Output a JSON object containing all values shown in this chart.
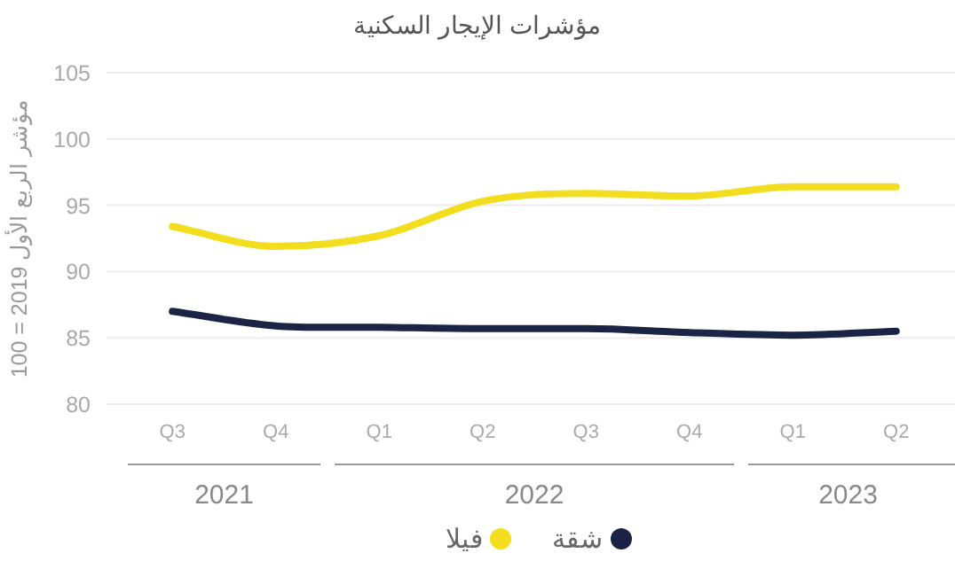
{
  "chart_data": {
    "type": "line",
    "title": "مؤشرات الإيجار السكنية",
    "ylabel": "مؤشر الربع الأول 2019 = 100",
    "categories": [
      "Q3",
      "Q4",
      "Q1",
      "Q2",
      "Q3",
      "Q4",
      "Q1",
      "Q2"
    ],
    "series": [
      {
        "name": "شقة",
        "color": "#1b2444",
        "values": [
          87.0,
          85.9,
          85.8,
          85.7,
          85.7,
          85.4,
          85.2,
          85.5
        ]
      },
      {
        "name": "فيلا",
        "color": "#f2de1f",
        "values": [
          93.4,
          91.9,
          92.7,
          95.3,
          95.9,
          95.7,
          96.4,
          96.4
        ]
      }
    ],
    "ylim": [
      80,
      105
    ],
    "yticks": [
      80,
      85,
      90,
      95,
      100,
      105
    ],
    "grid": "y",
    "legend": "bottom",
    "marker": "none",
    "annotations": [
      "2021",
      "2022",
      "2023"
    ]
  }
}
